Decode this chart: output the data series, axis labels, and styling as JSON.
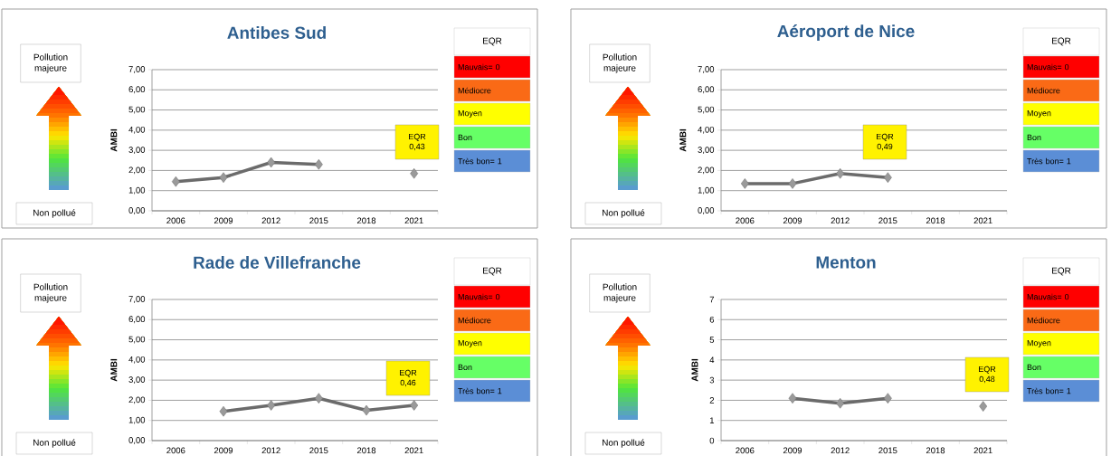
{
  "chart_data": [
    {
      "type": "line",
      "title": "Antibes Sud",
      "ylabel": "AMBI",
      "categories": [
        "2006",
        "2009",
        "2012",
        "2015",
        "2018",
        "2021"
      ],
      "values": [
        1.45,
        1.65,
        2.4,
        2.3,
        null,
        1.85
      ],
      "color": "#6b6b6b",
      "marker": "diamond",
      "grid": "y",
      "ylim": [
        0,
        7
      ],
      "yticks": [
        {
          "value": 0,
          "label": "0,00"
        },
        {
          "value": 1,
          "label": "1,00"
        },
        {
          "value": 2,
          "label": "2,00"
        },
        {
          "value": 3,
          "label": "3,00"
        },
        {
          "value": 4,
          "label": "4,00"
        },
        {
          "value": 5,
          "label": "5,00"
        },
        {
          "value": 6,
          "label": "6,00"
        },
        {
          "value": 7,
          "label": "7,00"
        }
      ],
      "annotations": [
        "Pollution majeure",
        "Non pollué",
        "EQR",
        "Mauvais= 0",
        "Médiocre",
        "Moyen",
        "Bon",
        "Très bon= 1",
        "EQR 0,43"
      ]
    },
    {
      "type": "line",
      "title": "Aéroport de Nice",
      "ylabel": "AMBI",
      "categories": [
        "2006",
        "2009",
        "2012",
        "2015",
        "2018",
        "2021"
      ],
      "values": [
        1.35,
        1.35,
        1.85,
        1.65,
        null,
        null
      ],
      "color": "#6b6b6b",
      "marker": "diamond",
      "grid": "y",
      "ylim": [
        0,
        7
      ],
      "yticks": [
        {
          "value": 0,
          "label": "0,00"
        },
        {
          "value": 1,
          "label": "1,00"
        },
        {
          "value": 2,
          "label": "2,00"
        },
        {
          "value": 3,
          "label": "3,00"
        },
        {
          "value": 4,
          "label": "4,00"
        },
        {
          "value": 5,
          "label": "5,00"
        },
        {
          "value": 6,
          "label": "6,00"
        },
        {
          "value": 7,
          "label": "7,00"
        }
      ],
      "annotations": [
        "Pollution majeure",
        "Non pollué",
        "EQR",
        "Mauvais= 0",
        "Médiocre",
        "Moyen",
        "Bon",
        "Très bon= 1",
        "EQR 0,49"
      ]
    },
    {
      "type": "line",
      "title": "Rade de Villefranche",
      "ylabel": "AMBI",
      "categories": [
        "2006",
        "2009",
        "2012",
        "2015",
        "2018",
        "2021"
      ],
      "values": [
        null,
        1.45,
        1.75,
        2.1,
        1.5,
        1.75
      ],
      "color": "#6b6b6b",
      "marker": "diamond",
      "grid": "y",
      "ylim": [
        0,
        7
      ],
      "yticks": [
        {
          "value": 0,
          "label": "0,00"
        },
        {
          "value": 1,
          "label": "1,00"
        },
        {
          "value": 2,
          "label": "2,00"
        },
        {
          "value": 3,
          "label": "3,00"
        },
        {
          "value": 4,
          "label": "4,00"
        },
        {
          "value": 5,
          "label": "5,00"
        },
        {
          "value": 6,
          "label": "6,00"
        },
        {
          "value": 7,
          "label": "7,00"
        }
      ],
      "annotations": [
        "Pollution majeure",
        "Non pollué",
        "EQR",
        "Mauvais= 0",
        "Médiocre",
        "Moyen",
        "Bon",
        "Très bon= 1",
        "EQR 0,46"
      ]
    },
    {
      "type": "line",
      "title": "Menton",
      "ylabel": "AMBI",
      "categories": [
        "2006",
        "2009",
        "2012",
        "2015",
        "2018",
        "2021"
      ],
      "values": [
        null,
        2.1,
        1.85,
        2.1,
        null,
        1.7
      ],
      "color": "#6b6b6b",
      "marker": "diamond",
      "grid": "y",
      "ylim": [
        0,
        7
      ],
      "yticks": [
        0,
        1,
        2,
        3,
        4,
        5,
        6,
        7
      ],
      "annotations": [
        "Pollution majeure",
        "Non pollué",
        "EQR",
        "Mauvais= 0",
        "Médiocre",
        "Moyen",
        "Bon",
        "Très bon= 1",
        "EQR 0,48"
      ]
    }
  ]
}
